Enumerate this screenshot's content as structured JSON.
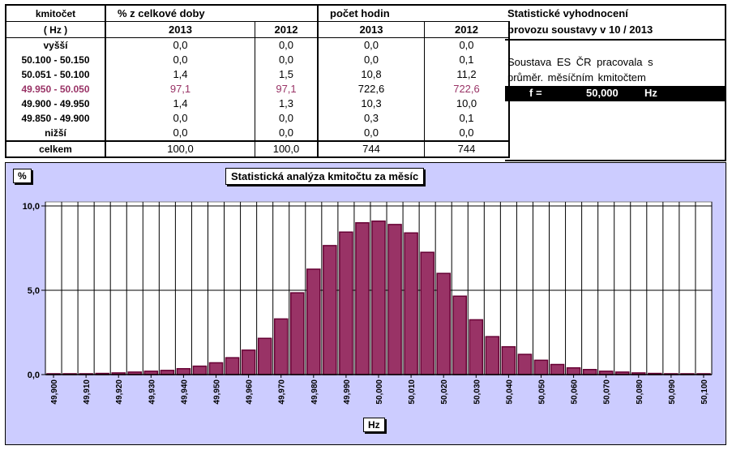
{
  "table": {
    "header": {
      "col0_line1": "kmitočet",
      "col0_line2": "( Hz )",
      "group1": "% z celkové doby",
      "group2": "počet hodin",
      "years": [
        "2013",
        "2012",
        "2013",
        "2012"
      ]
    },
    "rows": [
      {
        "label": "vyšší",
        "v": [
          "0,0",
          "0,0",
          "0,0",
          "0,0"
        ]
      },
      {
        "label": "50.100 - 50.150",
        "v": [
          "0,0",
          "0,0",
          "0,0",
          "0,1"
        ]
      },
      {
        "label": "50.051 - 50.100",
        "v": [
          "1,4",
          "1,5",
          "10,8",
          "11,2"
        ]
      },
      {
        "label": "49.950 - 50.050",
        "v": [
          "97,1",
          "97,1",
          "722,6",
          "722,6"
        ]
      },
      {
        "label": "49.900 - 49.950",
        "v": [
          "1,4",
          "1,3",
          "10,3",
          "10,0"
        ]
      },
      {
        "label": "49.850 - 49.900",
        "v": [
          "0,0",
          "0,0",
          "0,3",
          "0,1"
        ]
      },
      {
        "label": "nižší",
        "v": [
          "0,0",
          "0,0",
          "0,0",
          "0,0"
        ]
      }
    ],
    "total": {
      "label": "celkem",
      "v": [
        "100,0",
        "100,0",
        "744",
        "744"
      ]
    }
  },
  "info": {
    "title_line1": "Statistické vyhodnocení",
    "title_line2": "provozu soustavy v  10 / 2013",
    "desc_line1": "Soustava   ES ČR   pracovala s",
    "desc_line2": "průměr.  měsíčním  kmitočtem",
    "freq_label": "f =",
    "freq_value": "50,000",
    "freq_unit": "Hz"
  },
  "chart_data": {
    "type": "bar",
    "title": "Statistická analýza kmitočtu za měsíc",
    "ylabel": "%",
    "xlabel": "Hz",
    "ylim": [
      0,
      10
    ],
    "yticks": [
      "0,0",
      "5,0",
      "10,0"
    ],
    "ytick_values": [
      0,
      5,
      10
    ],
    "xtick_labels": [
      "49,900",
      "49,910",
      "49,920",
      "49,930",
      "49,940",
      "49,950",
      "49,960",
      "49,970",
      "49,980",
      "49,990",
      "50,000",
      "50,010",
      "50,020",
      "50,030",
      "50,040",
      "50,050",
      "50,060",
      "50,070",
      "50,080",
      "50,090",
      "50,100"
    ],
    "x": [
      49.9,
      49.905,
      49.91,
      49.915,
      49.92,
      49.925,
      49.93,
      49.935,
      49.94,
      49.945,
      49.95,
      49.955,
      49.96,
      49.965,
      49.97,
      49.975,
      49.98,
      49.985,
      49.99,
      49.995,
      50.0,
      50.005,
      50.01,
      50.015,
      50.02,
      50.025,
      50.03,
      50.035,
      50.04,
      50.045,
      50.05,
      50.055,
      50.06,
      50.065,
      50.07,
      50.075,
      50.08,
      50.085,
      50.09,
      50.095,
      50.1
    ],
    "values": [
      0.05,
      0.05,
      0.05,
      0.07,
      0.1,
      0.15,
      0.2,
      0.25,
      0.35,
      0.5,
      0.7,
      1.0,
      1.45,
      2.15,
      3.3,
      4.85,
      6.25,
      7.65,
      8.45,
      9.0,
      9.1,
      8.9,
      8.4,
      7.25,
      6.0,
      4.65,
      3.25,
      2.25,
      1.65,
      1.2,
      0.85,
      0.6,
      0.4,
      0.3,
      0.2,
      0.15,
      0.1,
      0.07,
      0.05,
      0.05,
      0.05
    ],
    "bar_color": "#993366",
    "bar_edge": "#660033",
    "background": "#ccccff",
    "plot_background": "#ffffff",
    "grid": true
  }
}
